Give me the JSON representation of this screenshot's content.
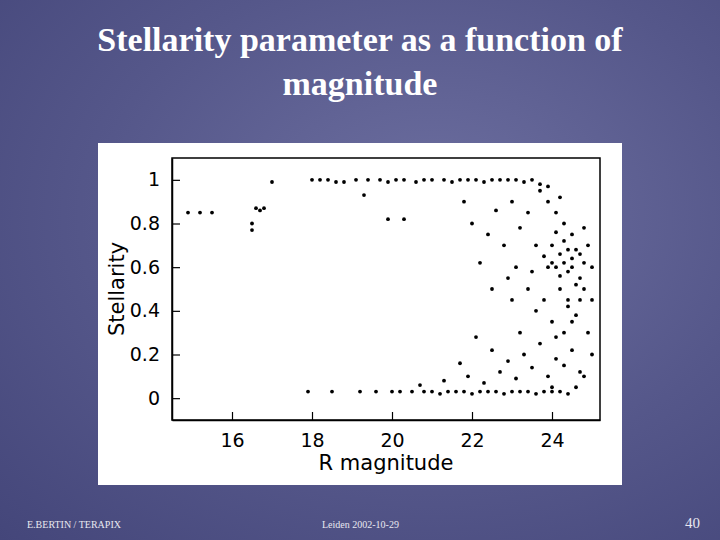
{
  "chart_data": {
    "type": "scatter",
    "title": "Stellarity parameter as a function of magnitude",
    "x_label": "R magnitude",
    "y_label": "Stellarity",
    "annotations": [
      "E.BERTIN / TERAPIX",
      "Leiden 2002-10-29",
      "40"
    ],
    "color": "#000000",
    "marker": "circle",
    "xlim": [
      14.5,
      25.2
    ],
    "ylim": [
      -0.1,
      1.1
    ],
    "xticks": [
      16,
      18,
      20,
      22,
      24
    ],
    "yticks": [
      0,
      0.2,
      0.4,
      0.6,
      0.8,
      1
    ],
    "x": [
      18.0,
      18.2,
      18.4,
      18.6,
      18.8,
      19.1,
      19.4,
      19.7,
      19.9,
      20.1,
      20.3,
      20.6,
      20.8,
      21.0,
      21.3,
      21.5,
      21.7,
      21.9,
      22.1,
      22.3,
      22.5,
      22.7,
      22.9,
      23.1,
      23.3,
      23.5,
      23.7,
      23.9,
      17.0,
      14.9,
      15.2,
      15.5,
      16.6,
      16.8,
      16.7,
      16.5,
      16.5,
      17.9,
      18.5,
      19.2,
      19.6,
      20.0,
      20.2,
      20.5,
      20.8,
      21.0,
      21.2,
      21.4,
      21.6,
      21.8,
      22.0,
      22.2,
      22.4,
      22.6,
      22.8,
      23.0,
      23.2,
      23.4,
      23.6,
      23.8,
      24.0,
      24.2,
      24.4,
      20.7,
      21.3,
      21.9,
      22.3,
      22.7,
      22.9,
      23.1,
      23.3,
      23.5,
      23.7,
      23.9,
      24.1,
      24.3,
      24.5,
      24.7,
      24.0,
      23.6,
      23.8,
      24.2,
      24.4,
      23.4,
      23.2,
      22.5,
      22.1,
      21.7,
      23.0,
      19.3,
      20.3,
      19.9,
      21.8,
      22.0,
      22.4,
      22.6,
      22.8,
      23.0,
      23.2,
      23.4,
      23.1,
      22.9,
      22.5,
      22.2,
      23.8,
      24.0,
      24.1,
      24.2,
      24.3,
      24.4,
      24.5,
      24.6,
      24.7,
      24.8,
      24.9,
      24.3,
      24.5,
      24.1,
      24.6,
      24.4,
      24.2,
      24.0,
      24.7,
      24.3,
      24.5,
      24.1,
      23.9,
      24.2,
      23.7,
      24.4,
      24.6,
      24.8,
      24.9,
      24.0,
      24.6,
      24.8,
      25.0,
      24.3,
      24.1,
      23.9,
      23.6,
      23.5,
      24.7,
      24.5,
      24.8,
      25.0,
      25.0
    ],
    "values": [
      1,
      1,
      1,
      0.99,
      0.99,
      1,
      1,
      1,
      0.99,
      1,
      1,
      0.99,
      1,
      1,
      1,
      0.99,
      1,
      1,
      1,
      0.99,
      1,
      1,
      1,
      1,
      0.99,
      1,
      0.98,
      0.97,
      0.99,
      0.85,
      0.85,
      0.85,
      0.87,
      0.87,
      0.86,
      0.8,
      0.77,
      0.03,
      0.03,
      0.03,
      0.03,
      0.03,
      0.03,
      0.03,
      0.03,
      0.03,
      0.02,
      0.03,
      0.03,
      0.03,
      0.02,
      0.03,
      0.03,
      0.03,
      0.02,
      0.03,
      0.03,
      0.03,
      0.02,
      0.03,
      0.03,
      0.03,
      0.02,
      0.06,
      0.08,
      0.1,
      0.07,
      0.12,
      0.17,
      0.09,
      0.2,
      0.14,
      0.25,
      0.1,
      0.18,
      0.3,
      0.22,
      0.12,
      0.35,
      0.4,
      0.45,
      0.5,
      0.42,
      0.5,
      0.3,
      0.22,
      0.28,
      0.16,
      0.45,
      0.93,
      0.82,
      0.82,
      0.9,
      0.8,
      0.75,
      0.86,
      0.7,
      0.9,
      0.78,
      0.85,
      0.6,
      0.55,
      0.5,
      0.62,
      0.65,
      0.7,
      0.6,
      0.66,
      0.72,
      0.58,
      0.64,
      0.68,
      0.55,
      0.62,
      0.7,
      0.62,
      0.6,
      0.76,
      0.52,
      0.68,
      0.56,
      0.62,
      0.66,
      0.8,
      0.75,
      0.85,
      0.9,
      0.92,
      0.95,
      0.45,
      0.38,
      0.5,
      0.3,
      0.05,
      0.05,
      0.1,
      0.2,
      0.15,
      0.28,
      0.6,
      0.7,
      0.58,
      0.45,
      0.35,
      0.78,
      0.6,
      0.45
    ]
  }
}
